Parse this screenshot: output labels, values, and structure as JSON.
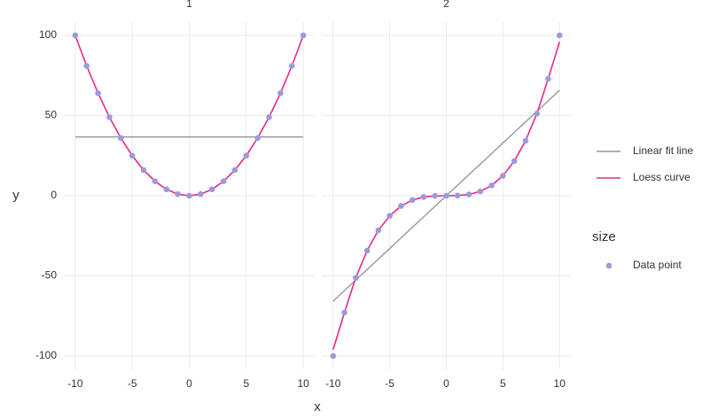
{
  "chart_data": {
    "type": "facet-line",
    "xlabel": "x",
    "ylabel": "y",
    "legend_title": "size",
    "panels": [
      "1",
      "2"
    ],
    "x": [
      -10,
      -9,
      -8,
      -7,
      -6,
      -5,
      -4,
      -3,
      -2,
      -1,
      0,
      1,
      2,
      3,
      4,
      5,
      6,
      7,
      8,
      9,
      10
    ],
    "xlim": [
      -11,
      11
    ],
    "xticks": [
      -10,
      -5,
      0,
      5,
      10
    ],
    "ylim": [
      -108.5,
      108.5
    ],
    "yticks": [
      -100,
      -50,
      0,
      50,
      100
    ],
    "grid": true,
    "series": [
      {
        "name": "Linear fit line",
        "kind": "line",
        "color": "#999999",
        "values": [
          [
            36.67,
            36.67,
            36.67,
            36.67,
            36.67,
            36.67,
            36.67,
            36.67,
            36.67,
            36.67,
            36.67,
            36.67,
            36.67,
            36.67,
            36.67,
            36.67,
            36.67,
            36.67,
            36.67,
            36.67,
            36.67
          ],
          [
            -65.8,
            -59.2,
            -52.6,
            -46.1,
            -39.5,
            -32.9,
            -26.3,
            -19.7,
            -13.2,
            -6.6,
            0,
            6.6,
            13.2,
            19.7,
            26.3,
            32.9,
            39.5,
            46.1,
            52.6,
            59.2,
            65.8
          ]
        ]
      },
      {
        "name": "Loess curve",
        "kind": "line",
        "color": "#e7298a",
        "values": [
          [
            100,
            81,
            64,
            49,
            36,
            25,
            16,
            9,
            4,
            1,
            0,
            1,
            4,
            9,
            16,
            25,
            36,
            49,
            64,
            81,
            100
          ],
          [
            -96,
            -73,
            -51.2,
            -34.3,
            -21.6,
            -12.5,
            -6.4,
            -2.7,
            -0.8,
            -0.1,
            0,
            0.1,
            0.8,
            2.7,
            6.4,
            12.5,
            21.6,
            34.3,
            51.2,
            73,
            96
          ]
        ]
      },
      {
        "name": "Data point",
        "kind": "point",
        "color": "#9e9ad8",
        "values": [
          [
            100,
            81,
            64,
            49,
            36,
            25,
            16,
            9,
            4,
            1,
            0,
            1,
            4,
            9,
            16,
            25,
            36,
            49,
            64,
            81,
            100
          ],
          [
            -100,
            -72.9,
            -51.2,
            -34.3,
            -21.6,
            -12.5,
            -6.4,
            -2.7,
            -0.8,
            -0.1,
            0,
            0.1,
            0.8,
            2.7,
            6.4,
            12.5,
            21.6,
            34.3,
            51.2,
            72.9,
            100
          ]
        ]
      }
    ]
  }
}
